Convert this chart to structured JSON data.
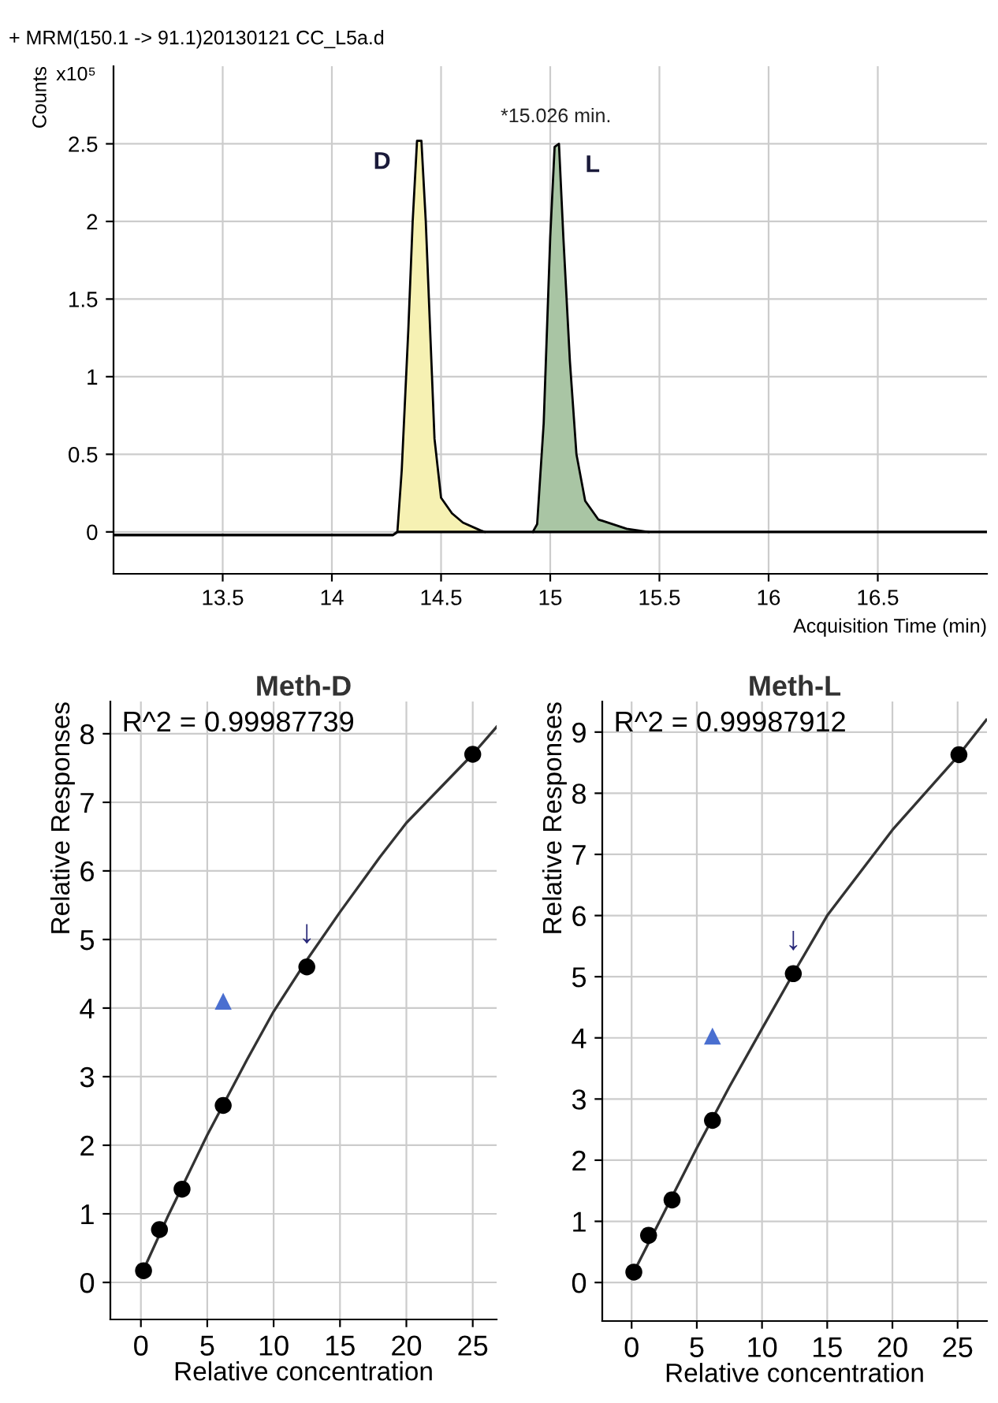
{
  "chart_data": [
    {
      "type": "area",
      "title": "+ MRM(150.1 -> 91.1)20130121 CC_L5a.d",
      "xlabel": "Acquisition Time (min)",
      "ylabel": "Counts",
      "xlim": [
        13.0,
        17.0
      ],
      "ylim": [
        -0.27,
        3.0
      ],
      "xticks": [
        13.5,
        14,
        14.5,
        15,
        15.5,
        16,
        16.5
      ],
      "yticks": [
        0,
        0.5,
        1,
        1.5,
        2,
        2.5
      ],
      "grid": true,
      "annotations": [
        "x10⁵",
        {
          "text": "*15.026 min.",
          "x": 15.026,
          "y": 2.5
        }
      ],
      "series": [
        {
          "type": "line",
          "color": "#000000",
          "x": [
            13.0,
            14.28,
            14.3,
            17.0
          ],
          "values": [
            -0.02,
            -0.02,
            0,
            0
          ]
        },
        {
          "name": "D",
          "color": "#f6f1b3",
          "x": [
            14.3,
            14.32,
            14.35,
            14.37,
            14.39,
            14.41,
            14.43,
            14.45,
            14.47,
            14.5,
            14.55,
            14.6,
            14.68,
            14.7
          ],
          "values": [
            0,
            0.4,
            1.3,
            2.0,
            2.52,
            2.52,
            2.0,
            1.3,
            0.6,
            0.22,
            0.12,
            0.06,
            0.01,
            0
          ]
        },
        {
          "name": "L",
          "color": "#a9c5a4",
          "x": [
            14.92,
            14.94,
            14.97,
            15.0,
            15.02,
            15.04,
            15.06,
            15.09,
            15.12,
            15.16,
            15.22,
            15.35,
            15.45
          ],
          "values": [
            0,
            0.05,
            0.7,
            1.9,
            2.48,
            2.5,
            1.9,
            1.1,
            0.5,
            0.2,
            0.08,
            0.02,
            0
          ]
        }
      ]
    },
    {
      "type": "scatter",
      "title": "Meth-D",
      "xlabel": "Relative concentration",
      "ylabel": "Relative Responses",
      "xlim": [
        -2.3,
        26.8
      ],
      "ylim": [
        -0.54,
        8.47
      ],
      "xticks": [
        0,
        5,
        10,
        15,
        20,
        25
      ],
      "yticks": [
        0,
        1,
        2,
        3,
        4,
        5,
        6,
        7,
        8
      ],
      "grid": true,
      "annotations": [
        "R^2 = 0.99987739",
        {
          "text": "↓",
          "x": 12.5,
          "y": 4.6
        }
      ],
      "series": [
        {
          "type": "line",
          "color": "#333333",
          "x": [
            0,
            2,
            5,
            8,
            10,
            12.5,
            15,
            18,
            20,
            22.5,
            25,
            26.8
          ],
          "values": [
            0.1,
            0.95,
            2.15,
            3.25,
            3.95,
            4.7,
            5.4,
            6.2,
            6.7,
            7.2,
            7.7,
            8.1
          ]
        },
        {
          "color": "#000000",
          "marker": "circle",
          "x": [
            0.2,
            1.4,
            3.1,
            6.2,
            12.5,
            25
          ],
          "values": [
            0.17,
            0.77,
            1.36,
            2.58,
            4.6,
            7.7
          ]
        },
        {
          "color": "#4a6fd0",
          "marker": "triangle",
          "x": [
            6.2
          ],
          "values": [
            4.1
          ]
        }
      ]
    },
    {
      "type": "scatter",
      "title": "Meth-L",
      "xlabel": "Relative concentration",
      "ylabel": "Relative Responses",
      "xlim": [
        -2.25,
        27.25
      ],
      "ylim": [
        -0.63,
        9.5
      ],
      "xticks": [
        0,
        5,
        10,
        15,
        20,
        25
      ],
      "yticks": [
        0,
        1,
        2,
        3,
        4,
        5,
        6,
        7,
        8,
        9
      ],
      "grid": true,
      "annotations": [
        "R^2 = 0.99987912",
        {
          "text": "↓",
          "x": 12.4,
          "y": 5.05
        }
      ],
      "series": [
        {
          "type": "line",
          "color": "#333333",
          "x": [
            0,
            2.5,
            5,
            7.5,
            10,
            12.4,
            15,
            17.5,
            20,
            22.5,
            25,
            27.2
          ],
          "values": [
            0.1,
            1.15,
            2.2,
            3.2,
            4.15,
            5.05,
            6.0,
            6.7,
            7.4,
            8.0,
            8.6,
            9.2
          ]
        },
        {
          "color": "#000000",
          "marker": "circle",
          "x": [
            0.17,
            1.3,
            3.1,
            6.2,
            12.4,
            25.1
          ],
          "values": [
            0.17,
            0.77,
            1.35,
            2.65,
            5.05,
            8.63
          ]
        },
        {
          "color": "#4a6fd0",
          "marker": "triangle",
          "x": [
            6.2
          ],
          "values": [
            4.03
          ]
        }
      ]
    }
  ]
}
